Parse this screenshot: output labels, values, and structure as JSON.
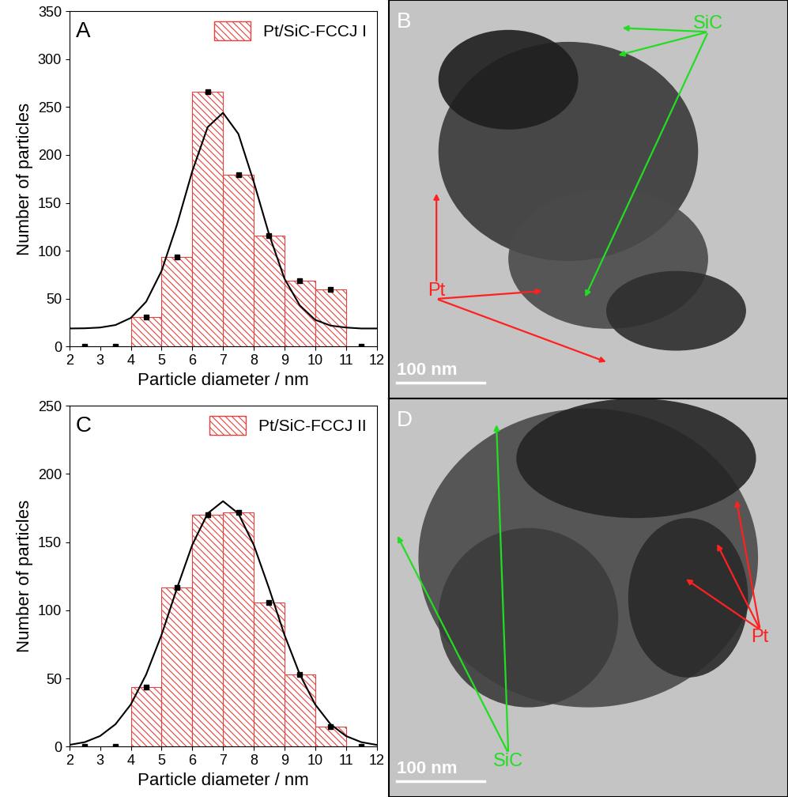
{
  "chart_data": [
    {
      "type": "histogram",
      "x_label": "Particle diameter / nm",
      "y_label": "Number of particles",
      "annotations": [
        "A"
      ],
      "legend": "upper right",
      "xlim": [
        2,
        12
      ],
      "xticks": [
        2,
        3,
        4,
        5,
        6,
        7,
        8,
        9,
        10,
        11,
        12
      ],
      "ylim": [
        0,
        350
      ],
      "yticks": [
        0,
        50,
        100,
        150,
        200,
        250,
        300,
        350
      ],
      "series": [
        {
          "name": "Pt/SiC-FCCJ I",
          "type": "histogram",
          "color": "#e8423f",
          "marker": "s",
          "bins": [
            2,
            3,
            4,
            5,
            6,
            7,
            8,
            9,
            10,
            11,
            12
          ],
          "counts": [
            0,
            0,
            31,
            94,
            266,
            179,
            116,
            69,
            60,
            0
          ]
        },
        {
          "type": "line",
          "color": "#000000",
          "line_style": "solid",
          "x": [
            2,
            2.5,
            3,
            3.5,
            4,
            4.5,
            5,
            5.5,
            6,
            6.5,
            7,
            7.5,
            8,
            8.5,
            9,
            9.5,
            10,
            10.5,
            11,
            11.5,
            12
          ],
          "values": [
            19,
            19.2,
            20,
            22.6,
            30,
            47,
            79,
            127,
            183,
            229,
            244,
            222,
            172,
            117,
            71,
            43,
            28,
            22,
            20,
            19,
            19
          ]
        }
      ]
    },
    {
      "type": "histogram",
      "x_label": "Particle diameter / nm",
      "y_label": "Number of particles",
      "annotations": [
        "C"
      ],
      "legend": "upper right",
      "xlim": [
        2,
        12
      ],
      "xticks": [
        2,
        3,
        4,
        5,
        6,
        7,
        8,
        9,
        10,
        11,
        12
      ],
      "ylim": [
        0,
        250
      ],
      "yticks": [
        0,
        50,
        100,
        150,
        200,
        250
      ],
      "series": [
        {
          "name": "Pt/SiC-FCCJ II",
          "type": "histogram",
          "color": "#e8423f",
          "marker": "s",
          "bins": [
            2,
            3,
            4,
            5,
            6,
            7,
            8,
            9,
            10,
            11,
            12
          ],
          "counts": [
            0,
            0,
            44,
            117,
            170,
            172,
            106,
            53,
            15,
            0
          ]
        },
        {
          "type": "line",
          "color": "#000000",
          "line_style": "solid",
          "x": [
            2,
            2.5,
            3,
            3.5,
            4,
            4.5,
            5,
            5.5,
            6,
            6.5,
            7,
            7.5,
            8,
            8.5,
            9,
            9.5,
            10,
            10.5,
            11,
            11.5,
            12
          ],
          "values": [
            1.4,
            3.4,
            7.9,
            16.5,
            31,
            53,
            82,
            116,
            148,
            171,
            180,
            171,
            148,
            116,
            82,
            53,
            31,
            16.5,
            7.9,
            3.4,
            1.4
          ]
        }
      ]
    }
  ],
  "images": [
    {
      "label": "B",
      "scale_bar": "100 nm",
      "annotations": [
        {
          "text": "SiC",
          "color": "#22dd22"
        },
        {
          "text": "Pt",
          "color": "#ff2020"
        }
      ]
    },
    {
      "label": "D",
      "scale_bar": "100 nm",
      "annotations": [
        {
          "text": "SiC",
          "color": "#22dd22"
        },
        {
          "text": "Pt",
          "color": "#ff2020"
        }
      ]
    }
  ]
}
